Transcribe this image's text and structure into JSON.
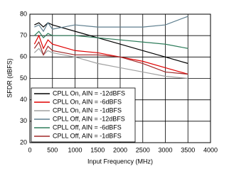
{
  "chart_data": {
    "type": "line",
    "x_label": "Input Frequency (MHz)",
    "y_label": "SFDR (dBFS)",
    "x": [
      100,
      200,
      300,
      400,
      500,
      1000,
      1500,
      2000,
      2500,
      3000,
      3500
    ],
    "series": [
      {
        "name": "CPLL On, AIN = -12dBFS",
        "color": "#000000",
        "values": [
          75,
          76,
          74,
          76,
          75,
          72,
          69,
          66,
          63,
          60,
          57
        ]
      },
      {
        "name": "CPLL On, AIN = -6dBFS",
        "color": "#e00000",
        "values": [
          66,
          70,
          64,
          68,
          66,
          63,
          62,
          60,
          58,
          55,
          52
        ]
      },
      {
        "name": "CPLL On, AIN = -1dBFS",
        "color": "#a0a0a0",
        "values": [
          62,
          64,
          61,
          63,
          62,
          60,
          57,
          55,
          53,
          51,
          50
        ]
      },
      {
        "name": "CPLL Off, AIN = -12dBFS",
        "color": "#5f7f8f",
        "values": [
          74,
          75,
          72,
          76,
          73,
          75,
          74,
          74,
          74,
          75,
          79
        ]
      },
      {
        "name": "CPLL Off, AIN = -6dBFS",
        "color": "#2e7d5b",
        "values": [
          70,
          72,
          69,
          71,
          70,
          70,
          69,
          68,
          67,
          66,
          64
        ]
      },
      {
        "name": "CPLL Off, AIN = -1dBFS",
        "color": "#a02828",
        "values": [
          64,
          67,
          61,
          65,
          63,
          61,
          61,
          60,
          57,
          53,
          52
        ]
      }
    ],
    "xlim": [
      0,
      4000
    ],
    "xticks": [
      0,
      500,
      1000,
      1500,
      2000,
      2500,
      3000,
      3500,
      4000
    ],
    "ylim": [
      20,
      80
    ],
    "yticks": [
      20,
      30,
      40,
      50,
      60,
      70,
      80
    ],
    "grid": true,
    "legend": "lower left"
  }
}
